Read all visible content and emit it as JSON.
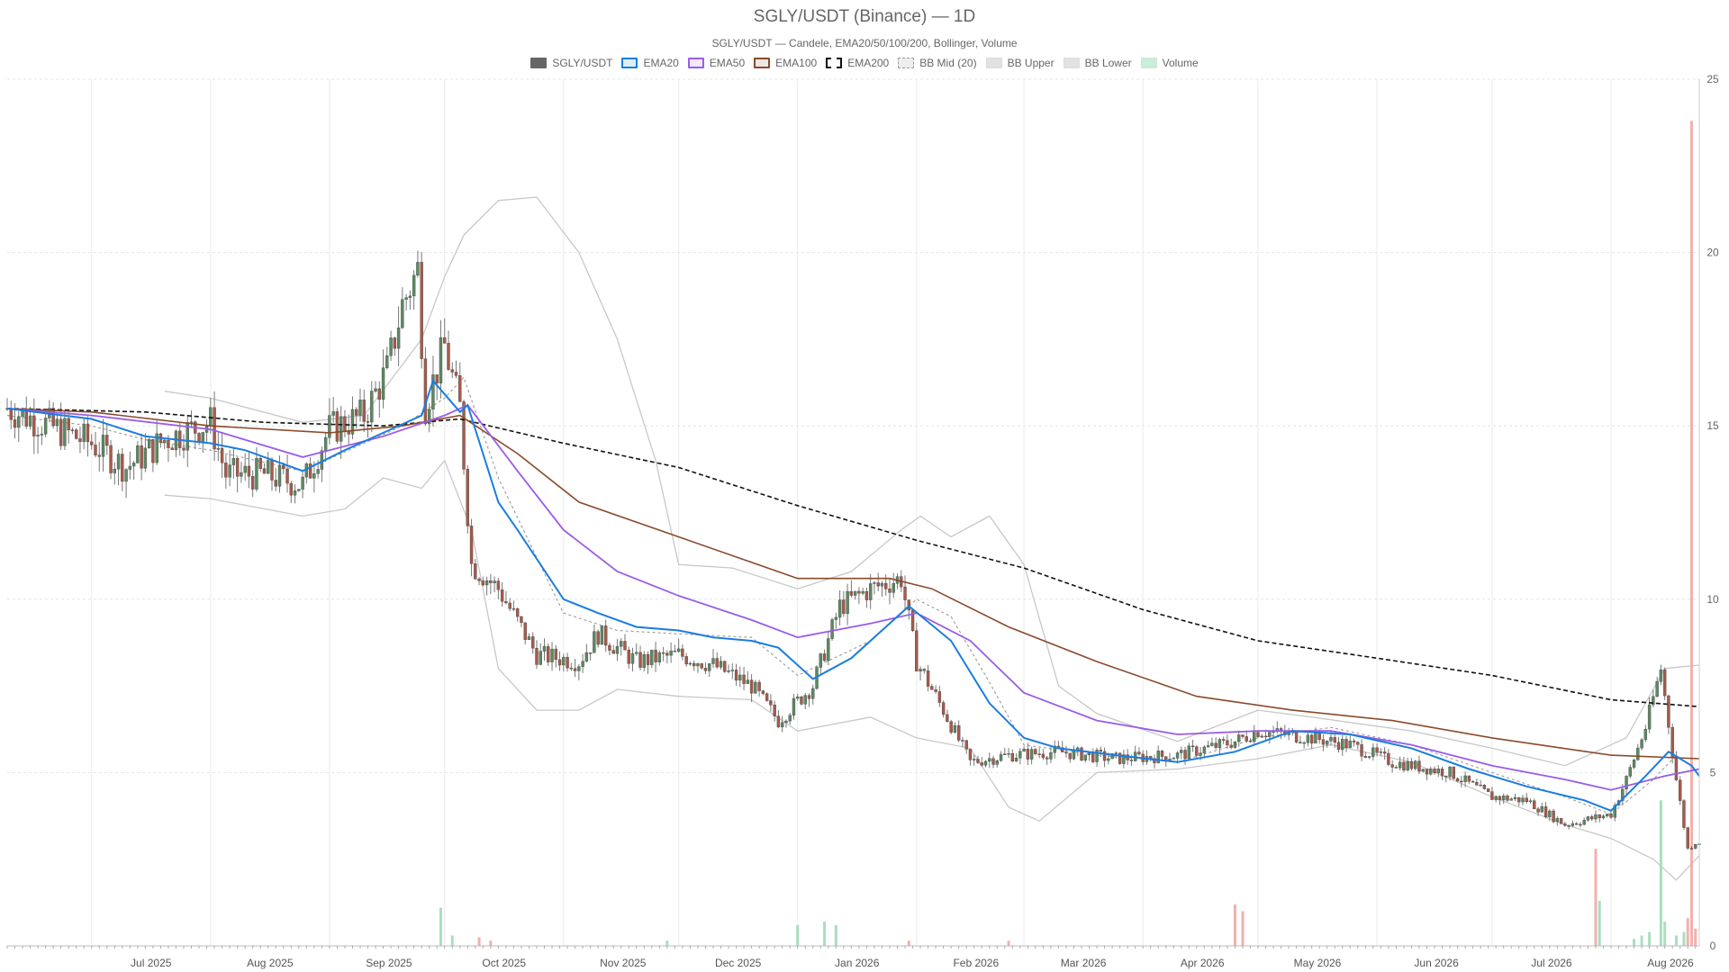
{
  "chart_data": {
    "type": "candlestick",
    "title": "SGLY/USDT (Binance) — 1D",
    "subtitle": "SGLY/USDT — Candele, EMA20/50/100/200, Bollinger, Volume",
    "x_ticks": [
      "Jul 2025",
      "Aug 2025",
      "Sep 2025",
      "Oct 2025",
      "Nov 2025",
      "Dec 2025",
      "Jan 2026",
      "Feb 2026",
      "Mar 2026",
      "Apr 2026",
      "May 2026",
      "Jun 2026",
      "Jul 2026",
      "Aug 2026"
    ],
    "y_ticks": [
      0,
      5,
      10,
      15,
      20,
      25
    ],
    "ylim": [
      0,
      25
    ],
    "x_range": [
      "2025-06-09",
      "2026-08-24"
    ],
    "legend_position": "top-center",
    "grid": true,
    "colors": {
      "up": "#5c8a62",
      "down": "#a85a4a",
      "up_volume": "#9edcb8",
      "down_volume": "#f0a8a4",
      "ema20": "#1a7de0",
      "ema50": "#9a5ce8",
      "ema100": "#8a4a2a",
      "ema200": "#111111",
      "bb_mid": "#9a9a9a",
      "bb_band": "#c8c8c8"
    },
    "legend": [
      {
        "label": "SGLY/USDT",
        "color": "#666666",
        "style": "solid-fill"
      },
      {
        "label": "EMA20",
        "color": "#1a7de0",
        "style": "line"
      },
      {
        "label": "EMA50",
        "color": "#9a5ce8",
        "style": "line"
      },
      {
        "label": "EMA100",
        "color": "#8a4a2a",
        "style": "line"
      },
      {
        "label": "EMA200",
        "color": "#111111",
        "style": "dashed"
      },
      {
        "label": "BB Mid (20)",
        "color": "#9a9a9a",
        "style": "dotted"
      },
      {
        "label": "BB Upper",
        "color": "#cccccc",
        "style": "fill"
      },
      {
        "label": "BB Lower",
        "color": "#cccccc",
        "style": "fill"
      },
      {
        "label": "Volume",
        "color": "#9edcb8",
        "style": "fill"
      }
    ],
    "close_path": [
      [
        "2025-06-09",
        15.5
      ],
      [
        "2025-06-20",
        15.0
      ],
      [
        "2025-07-01",
        14.5
      ],
      [
        "2025-07-10",
        13.8
      ],
      [
        "2025-07-20",
        14.6
      ],
      [
        "2025-08-01",
        15.1
      ],
      [
        "2025-08-05",
        13.6
      ],
      [
        "2025-08-15",
        13.6
      ],
      [
        "2025-08-25",
        13.3
      ],
      [
        "2025-09-01",
        14.9
      ],
      [
        "2025-09-10",
        15.3
      ],
      [
        "2025-09-16",
        16.6
      ],
      [
        "2025-09-20",
        18.5
      ],
      [
        "2025-09-24",
        19.5
      ],
      [
        "2025-09-26",
        15.6
      ],
      [
        "2025-10-01",
        17.3
      ],
      [
        "2025-10-05",
        15.5
      ],
      [
        "2025-10-08",
        11.0
      ],
      [
        "2025-10-15",
        10.3
      ],
      [
        "2025-10-25",
        8.4
      ],
      [
        "2025-11-05",
        8.2
      ],
      [
        "2025-11-10",
        9.0
      ],
      [
        "2025-11-20",
        8.2
      ],
      [
        "2025-12-01",
        8.4
      ],
      [
        "2025-12-10",
        8.1
      ],
      [
        "2025-12-20",
        7.5
      ],
      [
        "2025-12-27",
        6.5
      ],
      [
        "2026-01-05",
        7.5
      ],
      [
        "2026-01-12",
        9.8
      ],
      [
        "2026-01-20",
        10.3
      ],
      [
        "2026-01-28",
        10.6
      ],
      [
        "2026-02-01",
        8.2
      ],
      [
        "2026-02-08",
        6.8
      ],
      [
        "2026-02-15",
        5.3
      ],
      [
        "2026-02-25",
        5.5
      ],
      [
        "2026-03-10",
        5.6
      ],
      [
        "2026-03-25",
        5.4
      ],
      [
        "2026-04-10",
        5.5
      ],
      [
        "2026-04-25",
        5.9
      ],
      [
        "2026-05-01",
        6.2
      ],
      [
        "2026-05-15",
        6.0
      ],
      [
        "2026-05-25",
        5.8
      ],
      [
        "2026-06-05",
        5.3
      ],
      [
        "2026-06-20",
        5.0
      ],
      [
        "2026-07-01",
        4.3
      ],
      [
        "2026-07-10",
        4.2
      ],
      [
        "2026-07-20",
        3.5
      ],
      [
        "2026-08-01",
        3.8
      ],
      [
        "2026-08-05",
        4.8
      ],
      [
        "2026-08-10",
        6.3
      ],
      [
        "2026-08-14",
        8.0
      ],
      [
        "2026-08-18",
        4.8
      ],
      [
        "2026-08-21",
        2.8
      ],
      [
        "2026-08-23",
        3.0
      ]
    ],
    "ema20": [
      [
        "2025-06-09",
        15.5
      ],
      [
        "2025-07-01",
        15.2
      ],
      [
        "2025-07-15",
        14.7
      ],
      [
        "2025-08-01",
        14.5
      ],
      [
        "2025-08-10",
        14.3
      ],
      [
        "2025-08-25",
        13.7
      ],
      [
        "2025-09-05",
        14.3
      ],
      [
        "2025-09-15",
        14.8
      ],
      [
        "2025-09-25",
        15.3
      ],
      [
        "2025-09-28",
        16.3
      ],
      [
        "2025-10-05",
        15.4
      ],
      [
        "2025-10-07",
        15.6
      ],
      [
        "2025-10-15",
        12.8
      ],
      [
        "2025-10-20",
        12.0
      ],
      [
        "2025-11-01",
        10.0
      ],
      [
        "2025-11-10",
        9.6
      ],
      [
        "2025-11-20",
        9.2
      ],
      [
        "2025-12-01",
        9.1
      ],
      [
        "2025-12-10",
        8.9
      ],
      [
        "2025-12-20",
        8.8
      ],
      [
        "2025-12-27",
        8.6
      ],
      [
        "2026-01-05",
        7.7
      ],
      [
        "2026-01-15",
        8.3
      ],
      [
        "2026-01-22",
        9.0
      ],
      [
        "2026-01-30",
        9.8
      ],
      [
        "2026-02-10",
        8.8
      ],
      [
        "2026-02-20",
        7.0
      ],
      [
        "2026-03-01",
        6.0
      ],
      [
        "2026-03-10",
        5.7
      ],
      [
        "2026-03-25",
        5.5
      ],
      [
        "2026-04-10",
        5.3
      ],
      [
        "2026-04-25",
        5.6
      ],
      [
        "2026-05-10",
        6.2
      ],
      [
        "2026-05-25",
        6.1
      ],
      [
        "2026-06-10",
        5.7
      ],
      [
        "2026-06-25",
        5.1
      ],
      [
        "2026-07-10",
        4.6
      ],
      [
        "2026-07-25",
        4.2
      ],
      [
        "2026-08-01",
        3.9
      ],
      [
        "2026-08-10",
        4.9
      ],
      [
        "2026-08-16",
        5.6
      ],
      [
        "2026-08-22",
        5.2
      ],
      [
        "2026-08-24",
        4.9
      ]
    ],
    "ema50": [
      [
        "2025-06-09",
        15.5
      ],
      [
        "2025-07-01",
        15.3
      ],
      [
        "2025-08-01",
        14.9
      ],
      [
        "2025-08-25",
        14.1
      ],
      [
        "2025-09-15",
        14.7
      ],
      [
        "2025-10-01",
        15.3
      ],
      [
        "2025-10-07",
        15.6
      ],
      [
        "2025-10-20",
        13.7
      ],
      [
        "2025-11-01",
        12.0
      ],
      [
        "2025-11-15",
        10.8
      ],
      [
        "2025-12-01",
        10.1
      ],
      [
        "2025-12-20",
        9.4
      ],
      [
        "2026-01-01",
        8.9
      ],
      [
        "2026-01-20",
        9.3
      ],
      [
        "2026-02-01",
        9.6
      ],
      [
        "2026-02-15",
        8.8
      ],
      [
        "2026-03-01",
        7.3
      ],
      [
        "2026-03-20",
        6.5
      ],
      [
        "2026-04-10",
        6.1
      ],
      [
        "2026-05-01",
        6.2
      ],
      [
        "2026-05-20",
        6.2
      ],
      [
        "2026-06-10",
        5.8
      ],
      [
        "2026-07-01",
        5.2
      ],
      [
        "2026-07-20",
        4.8
      ],
      [
        "2026-08-01",
        4.5
      ],
      [
        "2026-08-15",
        4.9
      ],
      [
        "2026-08-24",
        5.1
      ]
    ],
    "ema100": [
      [
        "2025-06-09",
        15.5
      ],
      [
        "2025-07-01",
        15.4
      ],
      [
        "2025-08-01",
        15.0
      ],
      [
        "2025-09-01",
        14.8
      ],
      [
        "2025-09-20",
        15.0
      ],
      [
        "2025-10-05",
        15.3
      ],
      [
        "2025-10-20",
        14.2
      ],
      [
        "2025-11-05",
        12.8
      ],
      [
        "2025-12-01",
        11.8
      ],
      [
        "2026-01-01",
        10.6
      ],
      [
        "2026-01-25",
        10.6
      ],
      [
        "2026-02-05",
        10.3
      ],
      [
        "2026-02-25",
        9.2
      ],
      [
        "2026-03-20",
        8.2
      ],
      [
        "2026-04-15",
        7.2
      ],
      [
        "2026-05-10",
        6.8
      ],
      [
        "2026-06-05",
        6.5
      ],
      [
        "2026-07-01",
        6.0
      ],
      [
        "2026-08-01",
        5.5
      ],
      [
        "2026-08-24",
        5.4
      ]
    ],
    "ema200": [
      [
        "2025-06-09",
        15.5
      ],
      [
        "2025-07-15",
        15.4
      ],
      [
        "2025-08-15",
        15.1
      ],
      [
        "2025-09-15",
        15.0
      ],
      [
        "2025-10-05",
        15.2
      ],
      [
        "2025-11-01",
        14.5
      ],
      [
        "2025-12-01",
        13.8
      ],
      [
        "2026-01-01",
        12.7
      ],
      [
        "2026-02-01",
        11.7
      ],
      [
        "2026-03-01",
        10.9
      ],
      [
        "2026-04-01",
        9.7
      ],
      [
        "2026-05-01",
        8.8
      ],
      [
        "2026-06-01",
        8.3
      ],
      [
        "2026-07-01",
        7.8
      ],
      [
        "2026-08-01",
        7.1
      ],
      [
        "2026-08-24",
        6.9
      ]
    ],
    "bb_mid": [
      [
        "2025-06-09",
        15.3
      ],
      [
        "2025-07-01",
        15.0
      ],
      [
        "2025-07-15",
        14.6
      ],
      [
        "2025-08-01",
        14.3
      ],
      [
        "2025-08-25",
        13.7
      ],
      [
        "2025-09-10",
        14.5
      ],
      [
        "2025-09-20",
        15.0
      ],
      [
        "2025-10-01",
        15.8
      ],
      [
        "2025-10-06",
        16.4
      ],
      [
        "2025-10-15",
        13.5
      ],
      [
        "2025-11-01",
        9.6
      ],
      [
        "2025-11-15",
        9.1
      ],
      [
        "2025-12-01",
        9.0
      ],
      [
        "2025-12-20",
        8.9
      ],
      [
        "2026-01-01",
        7.8
      ],
      [
        "2026-01-20",
        8.8
      ],
      [
        "2026-02-01",
        10.0
      ],
      [
        "2026-02-10",
        9.5
      ],
      [
        "2026-02-20",
        7.6
      ],
      [
        "2026-03-01",
        5.8
      ],
      [
        "2026-03-20",
        5.5
      ],
      [
        "2026-04-10",
        5.3
      ],
      [
        "2026-05-01",
        6.0
      ],
      [
        "2026-05-20",
        6.3
      ],
      [
        "2026-06-10",
        5.8
      ],
      [
        "2026-07-01",
        5.0
      ],
      [
        "2026-07-20",
        4.3
      ],
      [
        "2026-08-01",
        3.8
      ],
      [
        "2026-08-12",
        4.8
      ],
      [
        "2026-08-18",
        5.5
      ],
      [
        "2026-08-24",
        5.0
      ]
    ],
    "bb_upper": [
      [
        "2025-07-20",
        16.0
      ],
      [
        "2025-08-01",
        15.8
      ],
      [
        "2025-08-25",
        15.1
      ],
      [
        "2025-09-10",
        15.3
      ],
      [
        "2025-09-25",
        17.5
      ],
      [
        "2025-10-01",
        19.3
      ],
      [
        "2025-10-06",
        20.5
      ],
      [
        "2025-10-15",
        21.5
      ],
      [
        "2025-10-25",
        21.6
      ],
      [
        "2025-11-05",
        20.0
      ],
      [
        "2025-11-15",
        17.5
      ],
      [
        "2025-11-25",
        14.0
      ],
      [
        "2025-12-01",
        11.0
      ],
      [
        "2025-12-15",
        10.9
      ],
      [
        "2026-01-01",
        10.3
      ],
      [
        "2026-01-15",
        10.8
      ],
      [
        "2026-01-28",
        12.0
      ],
      [
        "2026-02-02",
        12.4
      ],
      [
        "2026-02-10",
        11.8
      ],
      [
        "2026-02-20",
        12.4
      ],
      [
        "2026-03-01",
        11.0
      ],
      [
        "2026-03-10",
        7.5
      ],
      [
        "2026-03-20",
        6.7
      ],
      [
        "2026-04-10",
        5.9
      ],
      [
        "2026-05-01",
        6.8
      ],
      [
        "2026-05-15",
        6.6
      ],
      [
        "2026-06-10",
        6.2
      ],
      [
        "2026-07-01",
        5.7
      ],
      [
        "2026-07-20",
        5.2
      ],
      [
        "2026-08-05",
        6.0
      ],
      [
        "2026-08-15",
        8.0
      ],
      [
        "2026-08-24",
        8.1
      ]
    ],
    "bb_lower": [
      [
        "2025-07-20",
        13.0
      ],
      [
        "2025-08-01",
        12.9
      ],
      [
        "2025-08-25",
        12.4
      ],
      [
        "2025-09-05",
        12.6
      ],
      [
        "2025-09-15",
        13.5
      ],
      [
        "2025-09-25",
        13.2
      ],
      [
        "2025-10-01",
        14.0
      ],
      [
        "2025-10-08",
        12.0
      ],
      [
        "2025-10-15",
        8.0
      ],
      [
        "2025-10-25",
        6.8
      ],
      [
        "2025-11-05",
        6.8
      ],
      [
        "2025-11-15",
        7.4
      ],
      [
        "2025-12-01",
        7.2
      ],
      [
        "2025-12-20",
        7.1
      ],
      [
        "2026-01-01",
        6.2
      ],
      [
        "2026-01-20",
        6.6
      ],
      [
        "2026-02-01",
        6.0
      ],
      [
        "2026-02-15",
        5.7
      ],
      [
        "2026-02-25",
        4.0
      ],
      [
        "2026-03-05",
        3.6
      ],
      [
        "2026-03-20",
        5.0
      ],
      [
        "2026-04-10",
        5.1
      ],
      [
        "2026-05-01",
        5.4
      ],
      [
        "2026-05-20",
        5.8
      ],
      [
        "2026-06-10",
        5.3
      ],
      [
        "2026-07-01",
        4.3
      ],
      [
        "2026-07-20",
        3.5
      ],
      [
        "2026-08-01",
        3.1
      ],
      [
        "2026-08-12",
        2.5
      ],
      [
        "2026-08-18",
        1.9
      ],
      [
        "2026-08-24",
        2.6
      ]
    ],
    "volume_spikes": [
      [
        "2025-09-30",
        1.1,
        "up"
      ],
      [
        "2025-10-03",
        0.3,
        "up"
      ],
      [
        "2025-10-10",
        0.25,
        "down"
      ],
      [
        "2025-10-13",
        0.15,
        "down"
      ],
      [
        "2025-11-28",
        0.15,
        "up"
      ],
      [
        "2026-01-01",
        0.6,
        "up"
      ],
      [
        "2026-01-08",
        0.7,
        "up"
      ],
      [
        "2026-01-11",
        0.6,
        "up"
      ],
      [
        "2026-01-30",
        0.15,
        "down"
      ],
      [
        "2026-02-25",
        0.15,
        "down"
      ],
      [
        "2026-04-25",
        1.2,
        "down"
      ],
      [
        "2026-04-27",
        1.0,
        "down"
      ],
      [
        "2026-07-28",
        2.8,
        "down"
      ],
      [
        "2026-07-29",
        1.3,
        "up"
      ],
      [
        "2026-08-07",
        0.2,
        "up"
      ],
      [
        "2026-08-09",
        0.3,
        "up"
      ],
      [
        "2026-08-11",
        0.4,
        "up"
      ],
      [
        "2026-08-14",
        4.2,
        "up"
      ],
      [
        "2026-08-15",
        0.7,
        "up"
      ],
      [
        "2026-08-18",
        0.3,
        "up"
      ],
      [
        "2026-08-20",
        0.4,
        "up"
      ],
      [
        "2026-08-21",
        0.8,
        "down"
      ],
      [
        "2026-08-22",
        23.8,
        "down"
      ],
      [
        "2026-08-23",
        0.5,
        "down"
      ]
    ]
  }
}
